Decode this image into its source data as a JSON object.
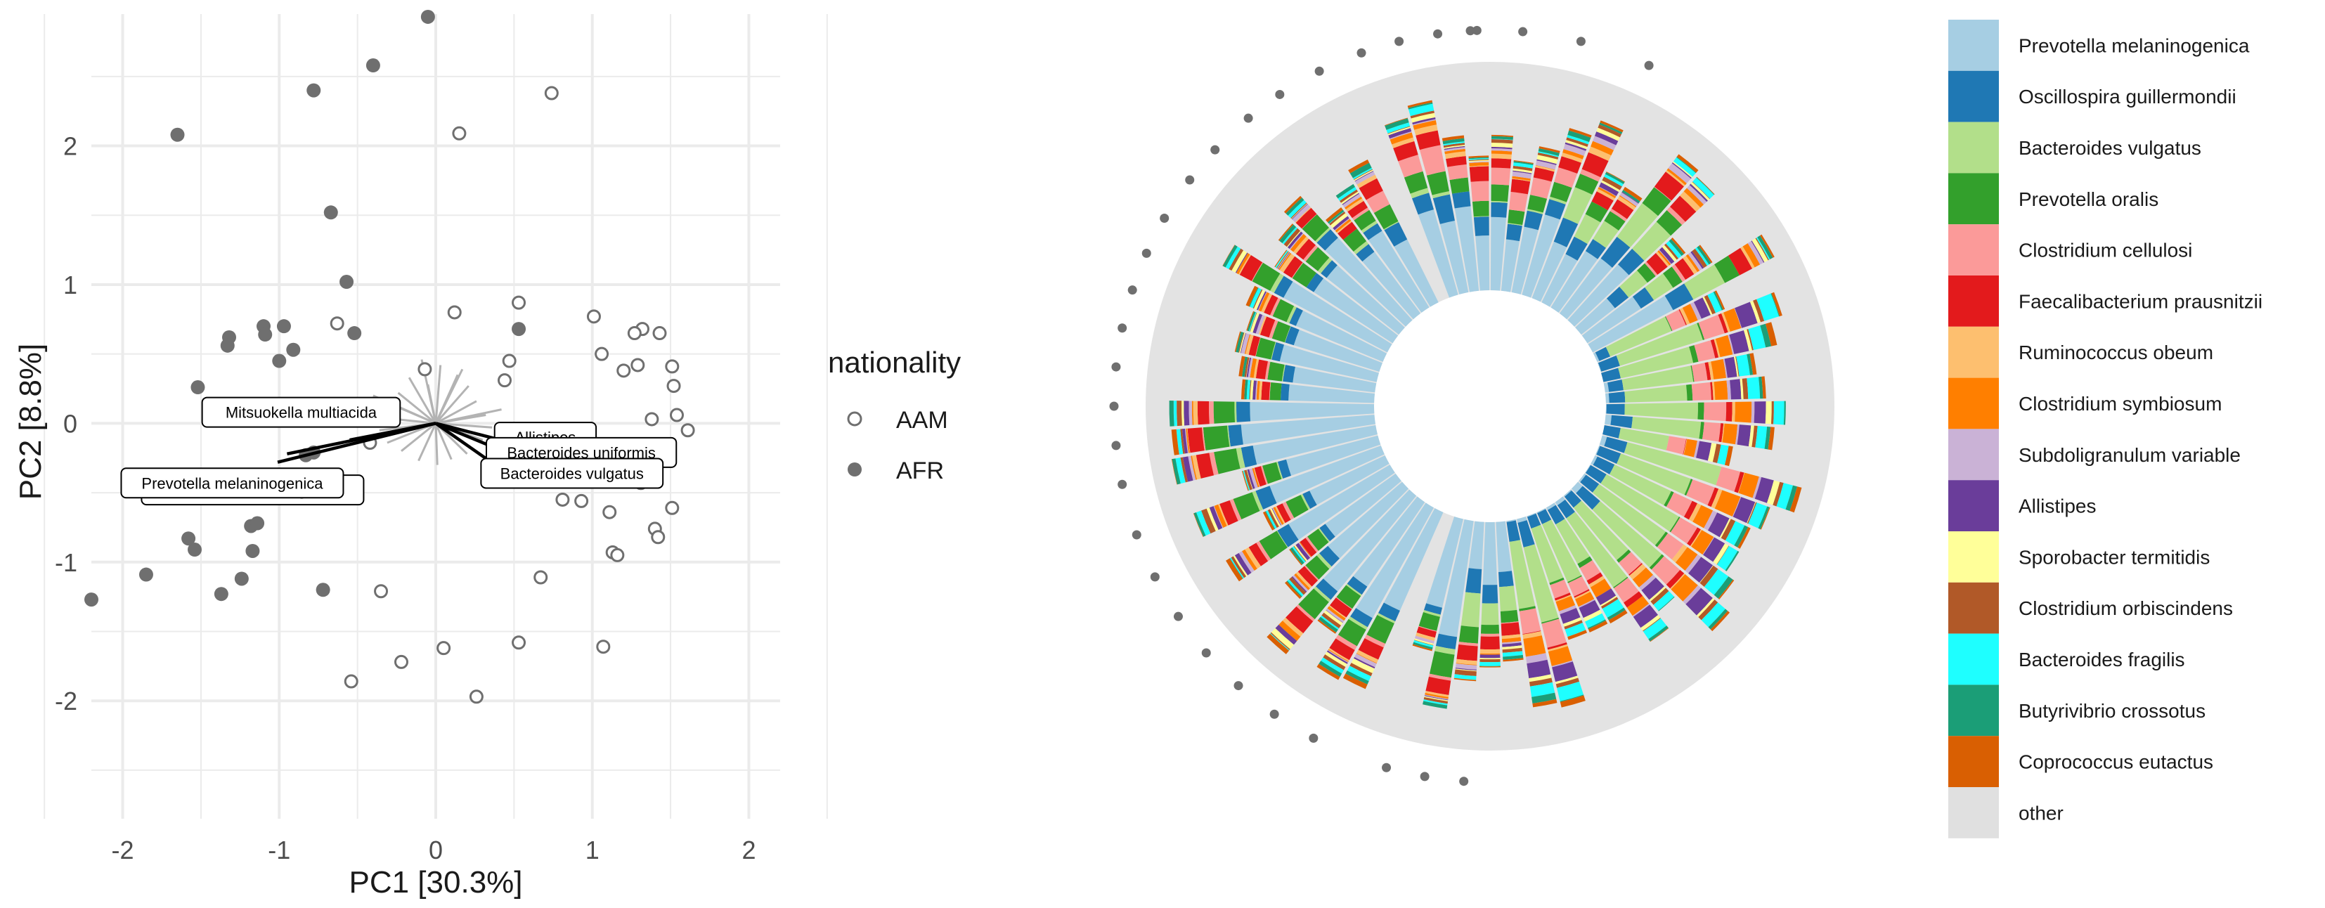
{
  "chart_data": [
    {
      "type": "scatter",
      "subtype": "pca-biplot",
      "title": "",
      "xlabel": "PC1 [30.3%]",
      "ylabel": "PC2 [8.8%]",
      "xlim": [
        -2.2,
        2.2
      ],
      "ylim": [
        -2.85,
        2.95
      ],
      "x_ticks": [
        -2,
        -1,
        0,
        1,
        2
      ],
      "y_ticks": [
        -2,
        -1,
        0,
        1,
        2
      ],
      "grid": true,
      "legend": {
        "title": "nationality",
        "position": "right",
        "entries": [
          {
            "label": "AAM",
            "marker": "open-circle"
          },
          {
            "label": "AFR",
            "marker": "filled-circle"
          }
        ]
      },
      "colors": {
        "points": "#6f6f6f",
        "grid": "#ebebeb",
        "arrow_bold": "#000000",
        "arrow_faint": "#b3b3b3"
      },
      "series": [
        {
          "name": "AFR",
          "points": [
            [
              -0.05,
              2.93
            ],
            [
              -0.4,
              2.58
            ],
            [
              -0.78,
              2.4
            ],
            [
              -1.65,
              2.08
            ],
            [
              -0.67,
              1.52
            ],
            [
              -0.57,
              1.02
            ],
            [
              -1.1,
              0.7
            ],
            [
              -0.97,
              0.7
            ],
            [
              -1.09,
              0.64
            ],
            [
              -1.32,
              0.62
            ],
            [
              -1.33,
              0.56
            ],
            [
              -0.91,
              0.53
            ],
            [
              -1.0,
              0.45
            ],
            [
              -0.52,
              0.65
            ],
            [
              0.53,
              0.68
            ],
            [
              -1.52,
              0.26
            ],
            [
              -0.83,
              -0.23
            ],
            [
              -0.78,
              -0.21
            ],
            [
              -0.87,
              -0.38
            ],
            [
              -0.55,
              -0.47
            ],
            [
              -1.18,
              -0.74
            ],
            [
              -1.14,
              -0.72
            ],
            [
              -1.58,
              -0.83
            ],
            [
              -1.54,
              -0.91
            ],
            [
              -1.17,
              -0.92
            ],
            [
              -1.85,
              -1.09
            ],
            [
              -1.24,
              -1.12
            ],
            [
              -1.37,
              -1.23
            ],
            [
              -0.72,
              -1.2
            ],
            [
              -2.2,
              -1.27
            ]
          ]
        },
        {
          "name": "AAM",
          "points": [
            [
              0.74,
              2.38
            ],
            [
              0.15,
              2.09
            ],
            [
              0.53,
              0.87
            ],
            [
              0.12,
              0.8
            ],
            [
              -0.63,
              0.72
            ],
            [
              1.01,
              0.77
            ],
            [
              1.32,
              0.68
            ],
            [
              1.27,
              0.65
            ],
            [
              1.43,
              0.65
            ],
            [
              1.06,
              0.5
            ],
            [
              1.29,
              0.42
            ],
            [
              1.2,
              0.38
            ],
            [
              1.51,
              0.41
            ],
            [
              1.52,
              0.27
            ],
            [
              -0.07,
              0.39
            ],
            [
              0.47,
              0.45
            ],
            [
              0.44,
              0.31
            ],
            [
              1.38,
              0.03
            ],
            [
              1.54,
              0.06
            ],
            [
              1.61,
              -0.05
            ],
            [
              -0.42,
              -0.14
            ],
            [
              1.22,
              -0.29
            ],
            [
              1.31,
              -0.43
            ],
            [
              0.81,
              -0.55
            ],
            [
              0.93,
              -0.56
            ],
            [
              1.51,
              -0.61
            ],
            [
              1.11,
              -0.64
            ],
            [
              1.4,
              -0.76
            ],
            [
              1.42,
              -0.82
            ],
            [
              1.13,
              -0.93
            ],
            [
              1.16,
              -0.95
            ],
            [
              0.67,
              -1.11
            ],
            [
              -0.35,
              -1.21
            ],
            [
              0.53,
              -1.58
            ],
            [
              0.05,
              -1.62
            ],
            [
              1.07,
              -1.61
            ],
            [
              -0.22,
              -1.72
            ],
            [
              -0.54,
              -1.86
            ],
            [
              0.26,
              -1.97
            ]
          ]
        }
      ],
      "loadings_bold": [
        {
          "label": "Mitsuokella multiacida",
          "x": -0.55,
          "y": -0.12
        },
        {
          "label": "Prevotella melaninogenica",
          "x": -1.01,
          "y": -0.28
        },
        {
          "label": "Prevotella melaninogenica",
          "x": -0.95,
          "y": -0.22
        },
        {
          "label": "Allistipes",
          "x": 0.45,
          "y": -0.13
        },
        {
          "label": "Bacteroides uniformis",
          "x": 0.43,
          "y": -0.2
        },
        {
          "label": "Bacteroides vulgatus",
          "x": 0.38,
          "y": -0.3
        }
      ],
      "loadings_faint": [
        [
          -0.09,
          0.46
        ],
        [
          0.03,
          0.42
        ],
        [
          0.14,
          0.35
        ],
        [
          -0.17,
          0.33
        ],
        [
          0.21,
          0.27
        ],
        [
          -0.24,
          0.22
        ],
        [
          0.26,
          0.16
        ],
        [
          -0.29,
          0.14
        ],
        [
          0.32,
          0.06
        ],
        [
          -0.34,
          0.04
        ],
        [
          0.36,
          -0.03
        ],
        [
          -0.36,
          -0.05
        ],
        [
          0.3,
          -0.12
        ],
        [
          -0.31,
          -0.14
        ],
        [
          0.2,
          -0.22
        ],
        [
          -0.22,
          -0.2
        ],
        [
          0.1,
          -0.26
        ],
        [
          -0.11,
          -0.27
        ],
        [
          0.01,
          -0.3
        ],
        [
          0.42,
          0.1
        ],
        [
          -0.4,
          0.2
        ],
        [
          0.17,
          0.39
        ],
        [
          -0.05,
          0.28
        ]
      ],
      "label_boxes": [
        {
          "text": "Mitsuokella multiacida",
          "x": -0.86,
          "y": 0.08
        },
        {
          "text": "Allistipes",
          "x": 0.7,
          "y": -0.1
        },
        {
          "text": "Bacteroides uniformis",
          "x": 0.93,
          "y": -0.21
        },
        {
          "text": "Bacteroides vulgatus",
          "x": 0.87,
          "y": -0.36
        },
        {
          "text": "Prevotella melaninogenica",
          "x": -1.17,
          "y": -0.48
        },
        {
          "text": "Prevotella melaninogenica",
          "x": -1.3,
          "y": -0.43
        }
      ]
    },
    {
      "type": "bar",
      "subtype": "circular-stacked-bar",
      "title": "",
      "n_samples": 69,
      "gap_angles_deg": [
        202,
        336
      ],
      "legend": {
        "position": "right"
      },
      "taxa": [
        {
          "name": "Prevotella melaninogenica",
          "color": "#a6cee3"
        },
        {
          "name": "Oscillospira guillermondii",
          "color": "#1f78b4"
        },
        {
          "name": "Bacteroides vulgatus",
          "color": "#b2df8a"
        },
        {
          "name": "Prevotella oralis",
          "color": "#33a02c"
        },
        {
          "name": "Clostridium cellulosi",
          "color": "#fb9a99"
        },
        {
          "name": "Faecalibacterium prausnitzii",
          "color": "#e31a1c"
        },
        {
          "name": "Ruminococcus obeum",
          "color": "#fdbf6f"
        },
        {
          "name": "Clostridium symbiosum",
          "color": "#ff7f00"
        },
        {
          "name": "Subdoligranulum variable",
          "color": "#cab2d6"
        },
        {
          "name": "Allistipes",
          "color": "#6a3d9a"
        },
        {
          "name": "Sporobacter termitidis",
          "color": "#ffff99"
        },
        {
          "name": "Clostridium orbiscindens",
          "color": "#b15928"
        },
        {
          "name": "Bacteroides fragilis",
          "color": "#1effff"
        },
        {
          "name": "Butyrivibrio crossotus",
          "color": "#1b9e77"
        },
        {
          "name": "Coprococcus eutactus",
          "color": "#d95f02"
        },
        {
          "name": "other",
          "color": "#e0e0e0"
        }
      ],
      "background_ring_color": "#e3e3e3",
      "group_dot_color": "#6f6f6f"
    }
  ]
}
